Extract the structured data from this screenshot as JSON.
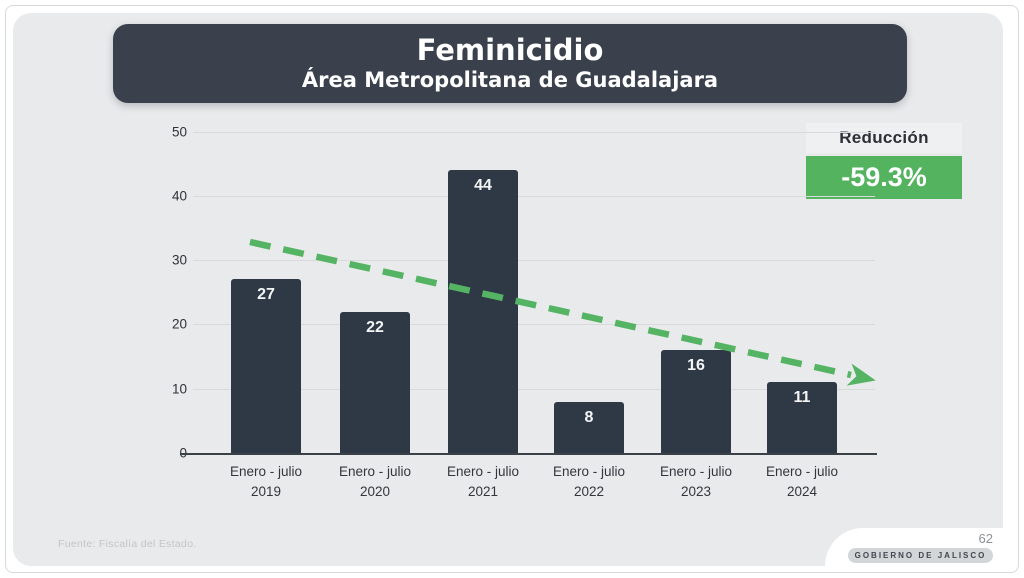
{
  "slide": {
    "title": "Feminicidio",
    "subtitle": "Área Metropolitana de Guadalajara",
    "reduction_label": "Reducción",
    "reduction_value": "-59.3%",
    "source": "Fuente: Fiscalía del Estado.",
    "page_number": "62",
    "footer_brand": "GOBIERNO DE JALISCO"
  },
  "colors": {
    "slide_bg": "#e9eaec",
    "title_box": "#3a414c",
    "bar": "#2e3945",
    "green_badge": "#53b35f",
    "trend_green": "#55b463",
    "grid": "#d8dadc",
    "axis": "#3b4148"
  },
  "chart_data": {
    "type": "bar",
    "title": "Feminicidio",
    "subtitle": "Área Metropolitana de Guadalajara",
    "categories": [
      "Enero - julio\n2019",
      "Enero - julio\n2020",
      "Enero - julio\n2021",
      "Enero - julio\n2022",
      "Enero - julio\n2023",
      "Enero - julio\n2024"
    ],
    "values": [
      27,
      22,
      44,
      8,
      16,
      11
    ],
    "xlabel": "",
    "ylabel": "",
    "ylim": [
      0,
      50
    ],
    "yticks": [
      0,
      10,
      20,
      30,
      40,
      50
    ],
    "grid": true,
    "legend": false,
    "bar_value_labels": "inside-top",
    "annotations": [
      {
        "type": "trend-arrow",
        "style": "dashed",
        "color": "#55b463",
        "from": {
          "category": "Enero - julio 2019",
          "value": 32.8
        },
        "to": {
          "category": "Enero - julio 2024",
          "value": 11.4
        }
      },
      {
        "type": "callout",
        "label": "Reducción",
        "value": "-59.3%",
        "position": "top-right"
      }
    ]
  }
}
